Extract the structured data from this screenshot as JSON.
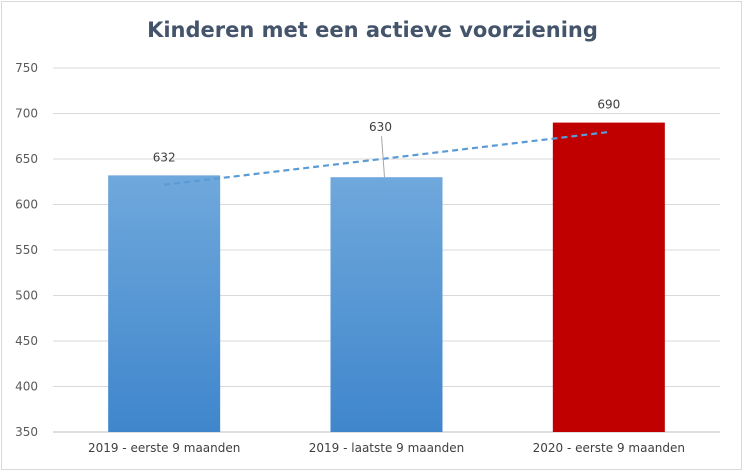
{
  "chart_data": {
    "type": "bar",
    "title": "Kinderen met een actieve voorziening",
    "categories": [
      "2019 - eerste 9 maanden",
      "2019 - laatste 9 maanden",
      "2020 - eerste 9 maanden"
    ],
    "values": [
      632,
      630,
      690
    ],
    "data_labels": [
      "632",
      "630",
      "690"
    ],
    "bar_colors": [
      "#5b9bd5",
      "#5b9bd5",
      "#c00000"
    ],
    "ylim": [
      350,
      750
    ],
    "yticks": [
      350,
      400,
      450,
      500,
      550,
      600,
      650,
      700,
      750
    ],
    "ytick_labels": [
      "350",
      "400",
      "450",
      "500",
      "550",
      "600",
      "650",
      "700",
      "750"
    ],
    "grid": true,
    "trendline": {
      "type": "linear",
      "style": "dashed",
      "color": "#5b9bd5"
    },
    "xlabel": "",
    "ylabel": ""
  }
}
